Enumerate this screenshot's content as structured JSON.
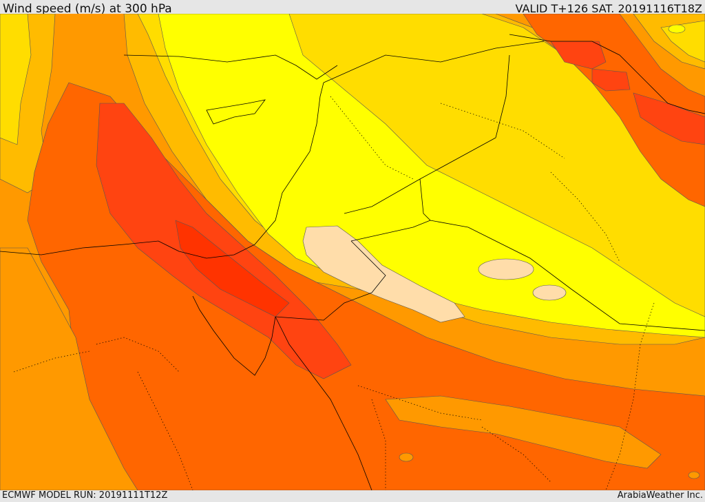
{
  "header": {
    "title": "Wind speed (m/s) at 300 hPa",
    "valid_time": "VALID T+126 SAT. 20191116T18Z"
  },
  "footer": {
    "model_run": "ECMWF MODEL RUN: 20191111T12Z",
    "credit": "ArabiaWeather Inc."
  },
  "colors": {
    "band_lowest": "#ffddaa",
    "band_1": "#ffff00",
    "band_2": "#ffdd00",
    "band_3": "#ffbb00",
    "band_4": "#ff9900",
    "band_5": "#ff6600",
    "band_6": "#ff4411",
    "contour": "#555555",
    "border": "#000000"
  }
}
